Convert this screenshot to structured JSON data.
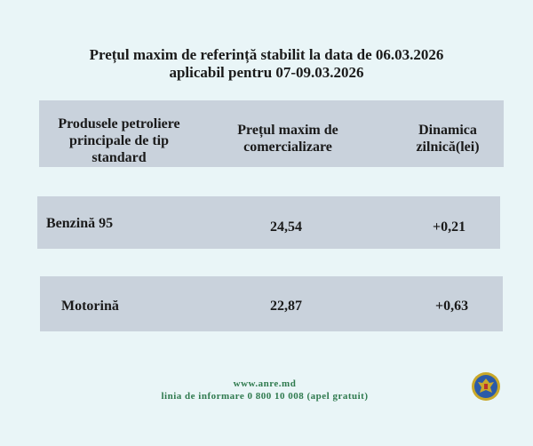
{
  "title": {
    "line1": "Prețul maxim de referință stabilit la data de 06.03.2026",
    "line2": "aplicabil pentru 07-09.03.2026"
  },
  "table": {
    "headers": [
      [
        "Produsele petroliere",
        "principale de tip",
        "standard"
      ],
      [
        "Prețul maxim de",
        "comercializare"
      ],
      [
        "Dinamica",
        "zilnică(lei)"
      ]
    ],
    "rows": [
      {
        "product": "Benzină 95",
        "price": "24,54",
        "change": "+0,21"
      },
      {
        "product": "Motorină",
        "price": "22,87",
        "change": "+0,63"
      }
    ]
  },
  "footer": {
    "website": "www.anre.md",
    "hotline": "linia de informare 0 800 10 008 (apel gratuit)"
  },
  "colors": {
    "background": "#e9f5f7",
    "table_fill": "#c9d2dc",
    "footer_text": "#2f7a4e",
    "emblem_blue": "#2b5aa8",
    "emblem_gold": "#c9a82a"
  },
  "icons": {
    "emblem": "anre-emblem"
  }
}
